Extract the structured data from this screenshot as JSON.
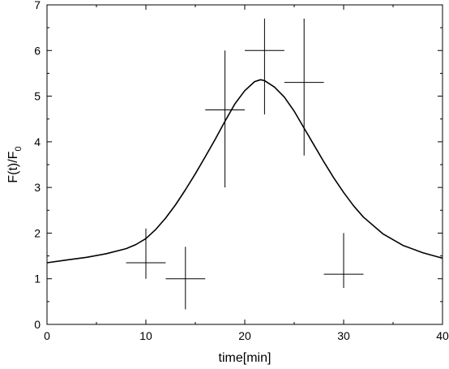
{
  "chart_data": {
    "type": "scatter",
    "title": "",
    "xlabel": "time[min]",
    "ylabel_main": "F(t)/F",
    "ylabel_sub": "0",
    "xlim": [
      0,
      40
    ],
    "ylim": [
      0,
      7
    ],
    "xticks": [
      0,
      10,
      20,
      30,
      40
    ],
    "yticks": [
      0,
      1,
      2,
      3,
      4,
      5,
      6,
      7
    ],
    "grid": false,
    "legend": "none",
    "series": [
      {
        "kind": "points_with_error_bars",
        "points": [
          {
            "x": 10,
            "y": 1.35,
            "xerr": 2,
            "ylow": 1.0,
            "yhigh": 2.1
          },
          {
            "x": 14,
            "y": 1.0,
            "xerr": 2,
            "ylow": 0.33,
            "yhigh": 1.7
          },
          {
            "x": 18,
            "y": 4.7,
            "xerr": 2,
            "ylow": 3.0,
            "yhigh": 6.0
          },
          {
            "x": 22,
            "y": 6.0,
            "xerr": 2,
            "ylow": 4.6,
            "yhigh": 6.7
          },
          {
            "x": 26,
            "y": 5.3,
            "xerr": 2,
            "ylow": 3.7,
            "yhigh": 6.7
          },
          {
            "x": 30,
            "y": 1.1,
            "xerr": 2,
            "ylow": 0.8,
            "yhigh": 2.0
          }
        ]
      },
      {
        "kind": "fit_curve",
        "x": [
          0,
          2,
          4,
          6,
          8,
          9,
          10,
          11,
          12,
          13,
          14,
          15,
          16,
          17,
          18,
          19,
          20,
          21,
          21.6,
          22,
          23,
          24,
          25,
          26,
          27,
          28,
          29,
          30,
          31,
          32,
          34,
          36,
          38,
          40
        ],
        "y": [
          1.35,
          1.41,
          1.47,
          1.55,
          1.66,
          1.75,
          1.88,
          2.08,
          2.33,
          2.62,
          2.95,
          3.3,
          3.67,
          4.05,
          4.45,
          4.83,
          5.12,
          5.32,
          5.36,
          5.34,
          5.2,
          4.98,
          4.67,
          4.3,
          3.93,
          3.56,
          3.21,
          2.89,
          2.6,
          2.35,
          1.98,
          1.73,
          1.57,
          1.45
        ]
      }
    ]
  }
}
